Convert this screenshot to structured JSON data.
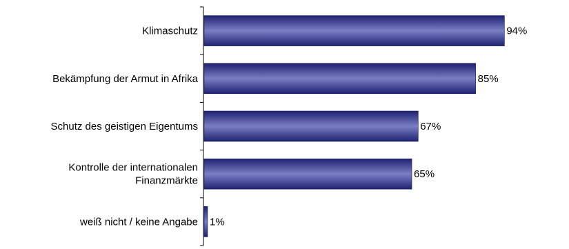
{
  "chart_data": {
    "type": "bar",
    "orientation": "horizontal",
    "categories": [
      [
        "Klimaschutz"
      ],
      [
        "Bekämpfung der Armut in Afrika"
      ],
      [
        "Schutz des geistigen Eigentums"
      ],
      [
        "Kontrolle der internationalen",
        "Finanzmärkte"
      ],
      [
        "weiß nicht / keine Angabe"
      ]
    ],
    "values": [
      94,
      85,
      67,
      65,
      1
    ],
    "value_labels": [
      "94%",
      "85%",
      "67%",
      "65%",
      "1%"
    ],
    "unit": "%",
    "xlim": [
      0,
      100
    ],
    "grid": false,
    "legend": "none",
    "colors": {
      "bar_light": "#7a7fc4",
      "bar_mid": "#4a4fa3",
      "bar_dark": "#1f2270",
      "axis": "#000000"
    }
  }
}
